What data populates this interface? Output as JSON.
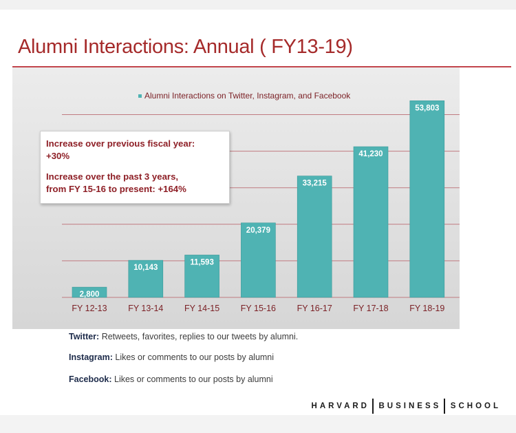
{
  "title": "Alumni Interactions: Annual ( FY13-19)",
  "callout": {
    "line1a": "Increase over previous fiscal year:",
    "line1b": "+30%",
    "line2a": "Increase over the past 3 years,",
    "line2b": "from FY 15-16 to present: +164%"
  },
  "notes": [
    {
      "label": "Twitter:",
      "text": " Retweets, favorites, replies to our tweets by alumni."
    },
    {
      "label": "Instagram:",
      "text": " Likes or comments to our posts by alumni"
    },
    {
      "label": "Facebook:",
      "text": " Likes or comments to our posts by alumni"
    }
  ],
  "logo": {
    "part1": "HARVARD",
    "part2": "BUSINESS",
    "part3": "SCHOOL"
  },
  "chart_data": {
    "type": "bar",
    "title": "",
    "xlabel": "",
    "ylabel": "",
    "categories": [
      "FY 12-13",
      "FY 13-14",
      "FY 14-15",
      "FY 15-16",
      "FY 16-17",
      "FY 17-18",
      "FY 18-19"
    ],
    "series": [
      {
        "name": "Alumni Interactions on Twitter, Instagram, and Facebook",
        "values": [
          2800,
          10143,
          11593,
          20379,
          33215,
          41230,
          53803
        ],
        "value_labels": [
          "2,800",
          "10,143",
          "11,593",
          "20,379",
          "33,215",
          "41,230",
          "53,803"
        ]
      }
    ],
    "ylim": [
      0,
      60000
    ],
    "grid": true,
    "legend": "top",
    "colors": {
      "bar": "#4fb3b3",
      "bar_edge": "#3a9a9a",
      "grid": "#c07a80",
      "axis_text": "#7a1f24",
      "legend_text": "#7a1f24",
      "value_text": "#ffffff"
    }
  }
}
